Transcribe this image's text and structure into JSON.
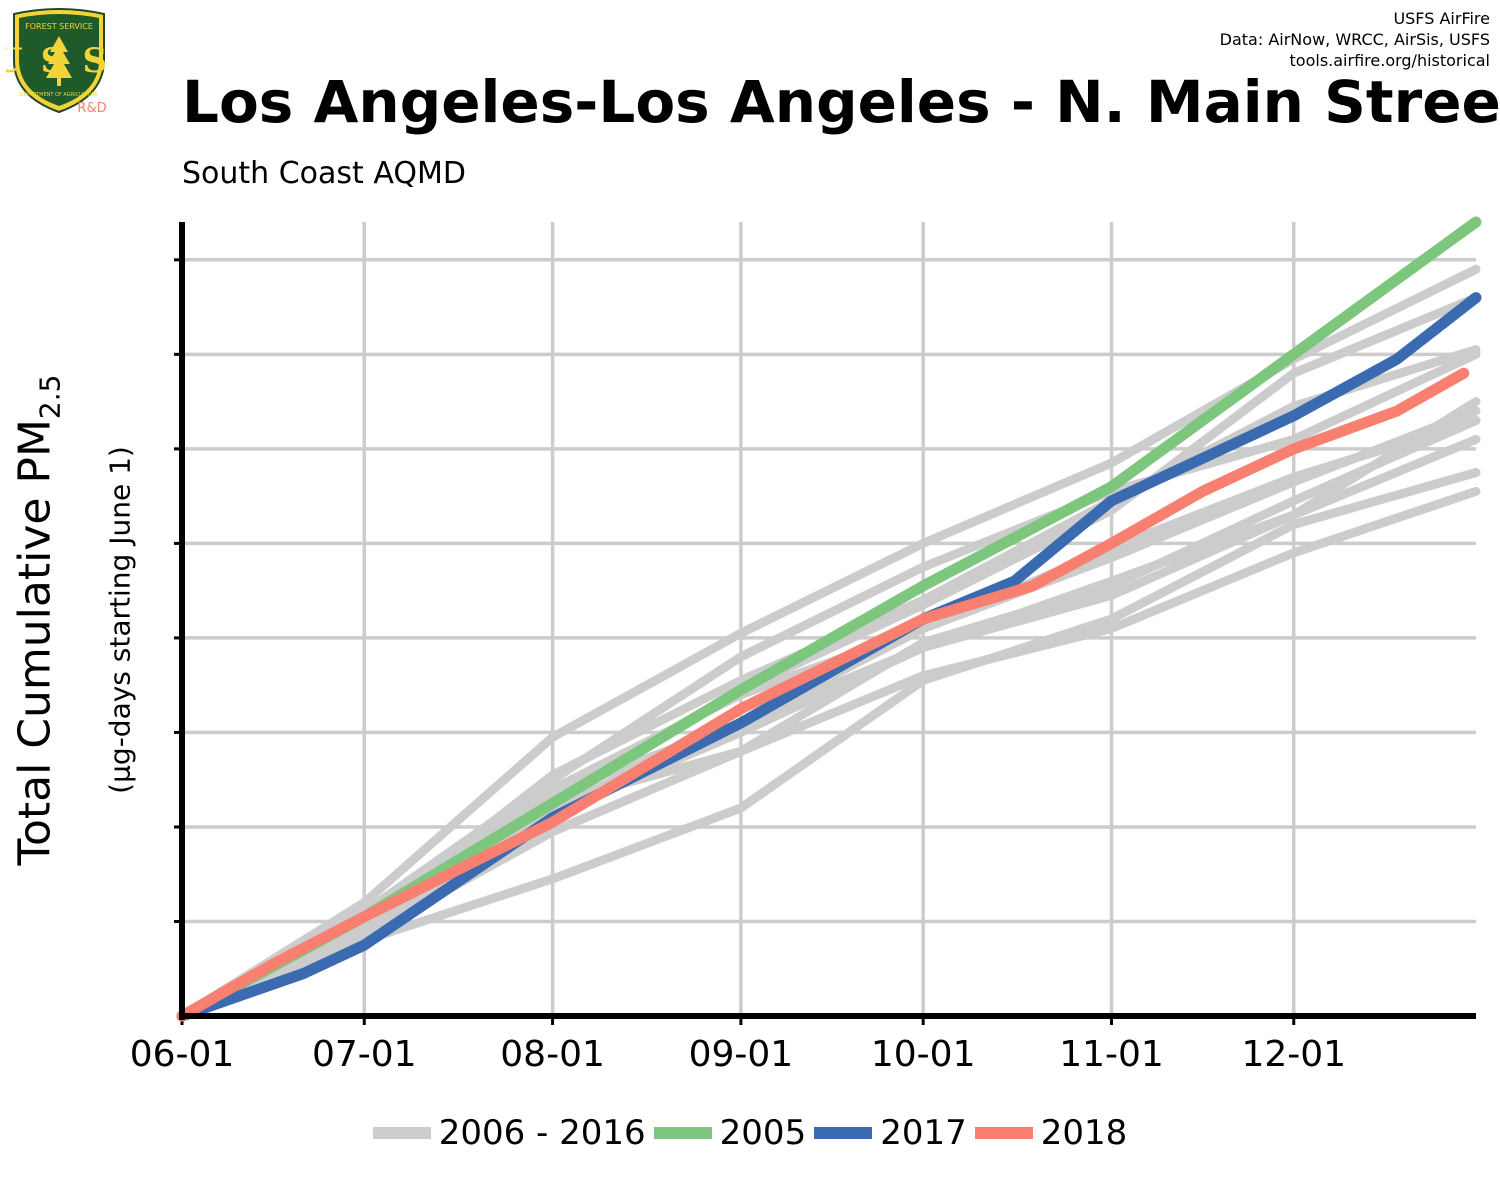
{
  "header": {
    "credit_lines": [
      "USFS AirFire",
      "Data: AirNow, WRCC, AirSis, USFS",
      "tools.airfire.org/historical"
    ],
    "title": "Los Angeles-Los Angeles - N. Main Stree",
    "subtitle": "South Coast AQMD",
    "logo": {
      "top_text": "FOREST SERVICE",
      "letters": "USS",
      "bottom_text": "DEPARTMENT OF AGRICULTURE",
      "badge": "R&D"
    }
  },
  "colors": {
    "history": "#cccccc",
    "y2005": "#7dc67d",
    "y2017": "#3a6ab0",
    "y2018": "#f98070",
    "grid": "#cccccc"
  },
  "chart_data": {
    "type": "line",
    "title": "Los Angeles-Los Angeles - N. Main Stree",
    "subtitle": "South Coast AQMD",
    "ylabel": "Total Cumulative PM2.5",
    "ylabel_main": "Total Cumulative PM",
    "ylabel_sub": "2.5",
    "ylabel_note": "(µg-days starting June 1)",
    "xlabel": "",
    "x_ticks": [
      "06-01",
      "07-01",
      "08-01",
      "09-01",
      "10-01",
      "11-01",
      "12-01"
    ],
    "x_tick_days": [
      0,
      30,
      61,
      92,
      122,
      153,
      183
    ],
    "xlim": [
      0,
      213
    ],
    "ylim": [
      0,
      8.4
    ],
    "y_tick_count": 8,
    "y_tick_labels_shown": false,
    "grid": true,
    "legend_position": "bottom",
    "legend": [
      "2006 - 2016",
      "2005",
      "2017",
      "2018"
    ],
    "history_label": "2006 - 2016",
    "history_series": [
      {
        "x": [
          0,
          30,
          61,
          92,
          122,
          153,
          183,
          213
        ],
        "y": [
          0,
          1.2,
          2.95,
          4.05,
          5.0,
          5.85,
          6.95,
          7.9
        ]
      },
      {
        "x": [
          0,
          30,
          61,
          92,
          122,
          153,
          183,
          213
        ],
        "y": [
          0,
          1.1,
          2.5,
          3.8,
          4.75,
          5.55,
          6.1,
          7.0
        ]
      },
      {
        "x": [
          0,
          30,
          61,
          92,
          122,
          153,
          183,
          213
        ],
        "y": [
          0,
          1.0,
          2.55,
          3.55,
          4.4,
          5.45,
          6.45,
          7.05
        ]
      },
      {
        "x": [
          0,
          30,
          61,
          92,
          122,
          153,
          183,
          213
        ],
        "y": [
          0,
          0.9,
          2.35,
          3.1,
          3.9,
          4.6,
          5.3,
          6.1
        ]
      },
      {
        "x": [
          0,
          30,
          61,
          92,
          122,
          153,
          183,
          213
        ],
        "y": [
          0,
          0.8,
          1.45,
          2.2,
          3.55,
          4.2,
          5.2,
          5.75
        ]
      },
      {
        "x": [
          0,
          30,
          61,
          92,
          122,
          153,
          183,
          213
        ],
        "y": [
          0,
          0.8,
          2.25,
          2.8,
          3.95,
          4.55,
          5.45,
          6.3
        ]
      },
      {
        "x": [
          0,
          30,
          61,
          92,
          122,
          153,
          183,
          213
        ],
        "y": [
          0,
          0.85,
          1.95,
          2.8,
          3.6,
          4.1,
          4.9,
          5.55
        ]
      },
      {
        "x": [
          0,
          30,
          61,
          92,
          122,
          153,
          183,
          213
        ],
        "y": [
          0,
          0.95,
          2.15,
          3.0,
          3.9,
          4.45,
          5.3,
          6.5
        ]
      },
      {
        "x": [
          0,
          30,
          61,
          92,
          122,
          153,
          183,
          213
        ],
        "y": [
          0,
          1.05,
          2.3,
          3.45,
          4.35,
          5.35,
          6.8,
          7.6
        ]
      },
      {
        "x": [
          0,
          30,
          61,
          92,
          122,
          153,
          183,
          213
        ],
        "y": [
          0,
          0.95,
          2.4,
          3.4,
          4.1,
          4.85,
          5.65,
          6.4
        ]
      },
      {
        "x": [
          0,
          30,
          61,
          92,
          122,
          153,
          183,
          213
        ],
        "y": [
          0,
          1.0,
          2.2,
          3.1,
          4.1,
          4.95,
          5.7,
          6.3
        ]
      }
    ],
    "series": [
      {
        "name": "2005",
        "x": [
          0,
          30,
          61,
          92,
          122,
          153,
          183,
          213
        ],
        "y": [
          0,
          1.05,
          2.25,
          3.45,
          4.55,
          5.6,
          7.0,
          8.4
        ]
      },
      {
        "name": "2017",
        "x": [
          0,
          20,
          30,
          61,
          92,
          122,
          137,
          153,
          168,
          183,
          200,
          213
        ],
        "y": [
          0,
          0.45,
          0.75,
          2.1,
          3.1,
          4.2,
          4.6,
          5.45,
          5.9,
          6.35,
          6.95,
          7.6
        ]
      },
      {
        "name": "2018",
        "x": [
          0,
          15,
          30,
          61,
          92,
          122,
          140,
          153,
          168,
          183,
          200,
          211
        ],
        "y": [
          0,
          0.55,
          1.05,
          2.05,
          3.25,
          4.2,
          4.55,
          5.0,
          5.55,
          6.0,
          6.4,
          6.8
        ]
      }
    ]
  }
}
